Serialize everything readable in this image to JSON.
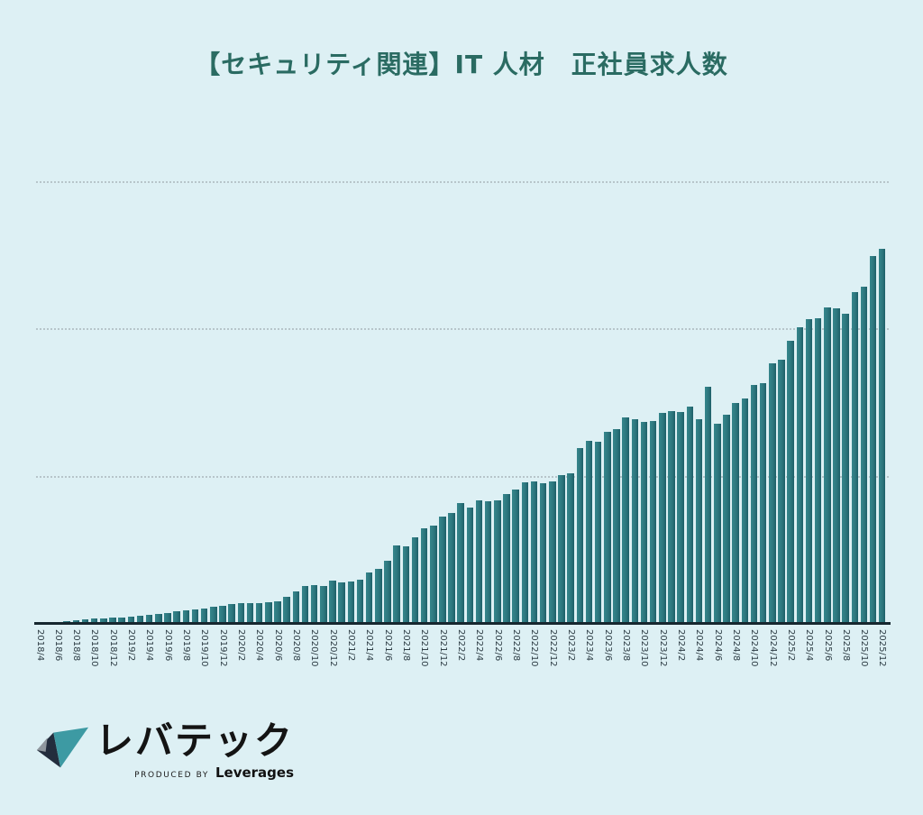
{
  "title": "【セキュリティ関連】IT 人材　正社員求人数",
  "logo": {
    "brand": "レバテック",
    "produced_by": "PRODUCED BY",
    "company": "Leverages"
  },
  "colors": {
    "background": "#ddf0f4",
    "title_text": "#2a6b62",
    "bar_fill": "#2d777e",
    "bar_edge_dark": "#1e5f68",
    "gridline": "#b7c5ca",
    "axis_line": "#16272f",
    "tick_text": "#2e3d45",
    "logo_teal": "#3d9aa3",
    "logo_navy": "#232d3d",
    "logo_gray": "#8f979e"
  },
  "chart_data": {
    "type": "bar",
    "title": "【セキュリティ関連】IT 人材　正社員求人数",
    "xlabel": "",
    "ylabel": "",
    "y_axis_labels_visible": false,
    "legend": "none",
    "grid": "horizontal-dotted",
    "ylim": [
      0,
      3.05
    ],
    "gridlines_y": [
      1,
      2,
      3
    ],
    "x_label_every": 2,
    "categories": [
      "2018/4",
      "2018/5",
      "2018/6",
      "2018/7",
      "2018/8",
      "2018/9",
      "2018/10",
      "2018/11",
      "2018/12",
      "2019/1",
      "2019/2",
      "2019/3",
      "2019/4",
      "2019/5",
      "2019/6",
      "2019/7",
      "2019/8",
      "2019/9",
      "2019/10",
      "2019/11",
      "2019/12",
      "2020/1",
      "2020/2",
      "2020/3",
      "2020/4",
      "2020/5",
      "2020/6",
      "2020/7",
      "2020/8",
      "2020/9",
      "2020/10",
      "2020/11",
      "2020/12",
      "2021/1",
      "2021/2",
      "2021/3",
      "2021/4",
      "2021/5",
      "2021/6",
      "2021/7",
      "2021/8",
      "2021/9",
      "2021/10",
      "2021/11",
      "2021/12",
      "2022/1",
      "2022/2",
      "2022/3",
      "2022/4",
      "2022/5",
      "2022/6",
      "2022/7",
      "2022/8",
      "2022/9",
      "2022/10",
      "2022/11",
      "2022/12",
      "2023/1",
      "2023/2",
      "2023/3",
      "2023/4",
      "2023/5",
      "2023/6",
      "2023/7",
      "2023/8",
      "2023/9",
      "2023/10",
      "2023/11",
      "2023/12",
      "2024/1",
      "2024/2",
      "2024/3",
      "2024/4",
      "2024/5",
      "2024/6",
      "2024/7",
      "2024/8",
      "2024/9",
      "2024/10",
      "2024/11",
      "2024/12",
      "2025/1",
      "2025/2",
      "2025/3",
      "2025/4",
      "2025/5",
      "2025/6",
      "2025/7",
      "2025/8",
      "2025/9",
      "2025/10",
      "2025/11",
      "2025/12"
    ],
    "values": [
      0.003,
      0.006,
      0.015,
      0.024,
      0.031,
      0.037,
      0.04,
      0.043,
      0.046,
      0.052,
      0.055,
      0.061,
      0.067,
      0.073,
      0.08,
      0.089,
      0.095,
      0.104,
      0.113,
      0.122,
      0.129,
      0.141,
      0.15,
      0.15,
      0.147,
      0.156,
      0.162,
      0.187,
      0.224,
      0.266,
      0.272,
      0.263,
      0.297,
      0.288,
      0.294,
      0.309,
      0.355,
      0.38,
      0.435,
      0.539,
      0.533,
      0.594,
      0.655,
      0.674,
      0.735,
      0.759,
      0.827,
      0.796,
      0.845,
      0.839,
      0.845,
      0.888,
      0.919,
      0.968,
      0.974,
      0.961,
      0.974,
      1.017,
      1.029,
      1.2,
      1.249,
      1.243,
      1.311,
      1.329,
      1.408,
      1.396,
      1.378,
      1.384,
      1.439,
      1.451,
      1.445,
      1.482,
      1.396,
      1.617,
      1.366,
      1.427,
      1.506,
      1.537,
      1.629,
      1.641,
      1.776,
      1.8,
      1.929,
      2.021,
      2.076,
      2.082,
      2.156,
      2.149,
      2.113,
      2.26,
      2.296,
      2.505,
      2.554
    ]
  }
}
